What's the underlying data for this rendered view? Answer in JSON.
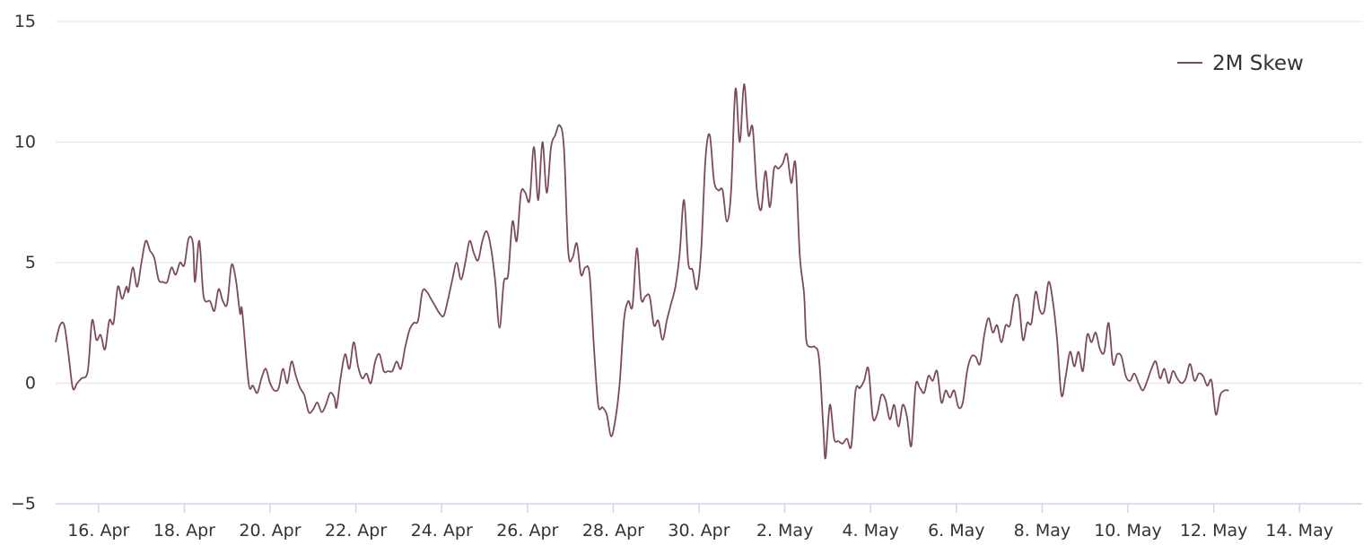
{
  "chart_data": {
    "type": "line",
    "title": "",
    "xlabel": "",
    "ylabel": "",
    "x_range": [
      "15 Apr",
      "15 May"
    ],
    "ylim": [
      -5,
      15
    ],
    "y_ticks": [
      -5,
      0,
      5,
      10,
      15
    ],
    "x_tick_labels": [
      "16. Apr",
      "18. Apr",
      "20. Apr",
      "22. Apr",
      "24. Apr",
      "26. Apr",
      "28. Apr",
      "30. Apr",
      "2. May",
      "4. May",
      "6. May",
      "8. May",
      "10. May",
      "12. May",
      "14. May"
    ],
    "x_tick_days": [
      1,
      3,
      5,
      7,
      9,
      11,
      13,
      15,
      17,
      19,
      21,
      23,
      25,
      27,
      29
    ],
    "grid": true,
    "legend_position": "top-right",
    "series": [
      {
        "name": "2M Skew",
        "color": "#7c4a5e",
        "points": [
          [
            0.0,
            1.7
          ],
          [
            0.1,
            2.4
          ],
          [
            0.2,
            2.4
          ],
          [
            0.3,
            1.2
          ],
          [
            0.4,
            -0.2
          ],
          [
            0.5,
            0.0
          ],
          [
            0.6,
            0.2
          ],
          [
            0.75,
            0.5
          ],
          [
            0.85,
            2.6
          ],
          [
            0.95,
            1.8
          ],
          [
            1.05,
            2.0
          ],
          [
            1.15,
            1.4
          ],
          [
            1.25,
            2.6
          ],
          [
            1.35,
            2.5
          ],
          [
            1.45,
            4.0
          ],
          [
            1.55,
            3.5
          ],
          [
            1.65,
            4.0
          ],
          [
            1.7,
            3.8
          ],
          [
            1.8,
            4.8
          ],
          [
            1.9,
            4.0
          ],
          [
            2.0,
            5.0
          ],
          [
            2.1,
            5.9
          ],
          [
            2.2,
            5.5
          ],
          [
            2.3,
            5.2
          ],
          [
            2.4,
            4.3
          ],
          [
            2.5,
            4.2
          ],
          [
            2.6,
            4.2
          ],
          [
            2.7,
            4.8
          ],
          [
            2.8,
            4.5
          ],
          [
            2.9,
            5.0
          ],
          [
            3.0,
            4.9
          ],
          [
            3.1,
            6.0
          ],
          [
            3.2,
            5.8
          ],
          [
            3.25,
            4.2
          ],
          [
            3.35,
            5.9
          ],
          [
            3.45,
            3.6
          ],
          [
            3.6,
            3.4
          ],
          [
            3.7,
            3.0
          ],
          [
            3.8,
            3.9
          ],
          [
            3.9,
            3.4
          ],
          [
            4.0,
            3.3
          ],
          [
            4.1,
            4.9
          ],
          [
            4.2,
            4.3
          ],
          [
            4.3,
            2.9
          ],
          [
            4.35,
            3.0
          ],
          [
            4.5,
            0.0
          ],
          [
            4.6,
            -0.1
          ],
          [
            4.7,
            -0.4
          ],
          [
            4.8,
            0.2
          ],
          [
            4.9,
            0.6
          ],
          [
            5.0,
            0.0
          ],
          [
            5.1,
            -0.3
          ],
          [
            5.2,
            -0.2
          ],
          [
            5.3,
            0.6
          ],
          [
            5.4,
            0.0
          ],
          [
            5.5,
            0.9
          ],
          [
            5.6,
            0.3
          ],
          [
            5.7,
            -0.2
          ],
          [
            5.8,
            -0.5
          ],
          [
            5.9,
            -1.2
          ],
          [
            6.0,
            -1.1
          ],
          [
            6.1,
            -0.8
          ],
          [
            6.2,
            -1.2
          ],
          [
            6.3,
            -0.9
          ],
          [
            6.4,
            -0.4
          ],
          [
            6.5,
            -0.6
          ],
          [
            6.55,
            -1.0
          ],
          [
            6.65,
            0.3
          ],
          [
            6.75,
            1.2
          ],
          [
            6.85,
            0.6
          ],
          [
            6.95,
            1.7
          ],
          [
            7.05,
            0.7
          ],
          [
            7.15,
            0.2
          ],
          [
            7.25,
            0.4
          ],
          [
            7.35,
            0.0
          ],
          [
            7.45,
            0.9
          ],
          [
            7.55,
            1.2
          ],
          [
            7.65,
            0.5
          ],
          [
            7.75,
            0.5
          ],
          [
            7.85,
            0.5
          ],
          [
            7.95,
            0.9
          ],
          [
            8.05,
            0.6
          ],
          [
            8.15,
            1.5
          ],
          [
            8.25,
            2.2
          ],
          [
            8.35,
            2.5
          ],
          [
            8.45,
            2.6
          ],
          [
            8.55,
            3.8
          ],
          [
            8.65,
            3.8
          ],
          [
            8.75,
            3.5
          ],
          [
            8.85,
            3.2
          ],
          [
            8.95,
            2.9
          ],
          [
            9.05,
            2.8
          ],
          [
            9.15,
            3.5
          ],
          [
            9.25,
            4.3
          ],
          [
            9.35,
            5.0
          ],
          [
            9.45,
            4.3
          ],
          [
            9.55,
            5.0
          ],
          [
            9.65,
            5.9
          ],
          [
            9.75,
            5.4
          ],
          [
            9.85,
            5.1
          ],
          [
            9.95,
            5.9
          ],
          [
            10.05,
            6.3
          ],
          [
            10.15,
            5.6
          ],
          [
            10.25,
            4.2
          ],
          [
            10.35,
            2.3
          ],
          [
            10.45,
            4.2
          ],
          [
            10.55,
            4.5
          ],
          [
            10.65,
            6.7
          ],
          [
            10.75,
            5.9
          ],
          [
            10.85,
            7.9
          ],
          [
            10.95,
            7.9
          ],
          [
            11.05,
            7.6
          ],
          [
            11.15,
            9.8
          ],
          [
            11.25,
            7.6
          ],
          [
            11.35,
            10.0
          ],
          [
            11.45,
            7.9
          ],
          [
            11.55,
            9.8
          ],
          [
            11.65,
            10.3
          ],
          [
            11.75,
            10.7
          ],
          [
            11.85,
            9.8
          ],
          [
            11.95,
            5.5
          ],
          [
            12.05,
            5.2
          ],
          [
            12.15,
            5.8
          ],
          [
            12.25,
            4.5
          ],
          [
            12.35,
            4.8
          ],
          [
            12.45,
            4.5
          ],
          [
            12.55,
            1.5
          ],
          [
            12.65,
            -0.9
          ],
          [
            12.75,
            -1.0
          ],
          [
            12.85,
            -1.3
          ],
          [
            12.95,
            -2.2
          ],
          [
            13.05,
            -1.5
          ],
          [
            13.15,
            0.0
          ],
          [
            13.25,
            2.6
          ],
          [
            13.35,
            3.4
          ],
          [
            13.45,
            3.2
          ],
          [
            13.55,
            5.6
          ],
          [
            13.65,
            3.5
          ],
          [
            13.75,
            3.6
          ],
          [
            13.85,
            3.6
          ],
          [
            13.95,
            2.4
          ],
          [
            14.05,
            2.6
          ],
          [
            14.15,
            1.8
          ],
          [
            14.25,
            2.6
          ],
          [
            14.35,
            3.3
          ],
          [
            14.45,
            4.0
          ],
          [
            14.55,
            5.4
          ],
          [
            14.65,
            7.6
          ],
          [
            14.75,
            5.0
          ],
          [
            14.85,
            4.7
          ],
          [
            14.95,
            3.9
          ],
          [
            15.05,
            5.5
          ],
          [
            15.15,
            9.3
          ],
          [
            15.25,
            10.3
          ],
          [
            15.35,
            8.4
          ],
          [
            15.45,
            8.0
          ],
          [
            15.55,
            8.0
          ],
          [
            15.65,
            6.7
          ],
          [
            15.75,
            8.0
          ],
          [
            15.85,
            12.2
          ],
          [
            15.95,
            10.0
          ],
          [
            16.05,
            12.4
          ],
          [
            16.15,
            10.3
          ],
          [
            16.25,
            10.6
          ],
          [
            16.35,
            8.0
          ],
          [
            16.45,
            7.2
          ],
          [
            16.55,
            8.8
          ],
          [
            16.65,
            7.3
          ],
          [
            16.75,
            8.9
          ],
          [
            16.85,
            8.9
          ],
          [
            16.95,
            9.1
          ],
          [
            17.05,
            9.5
          ],
          [
            17.15,
            8.3
          ],
          [
            17.25,
            9.1
          ],
          [
            17.35,
            5.3
          ],
          [
            17.45,
            3.7
          ],
          [
            17.5,
            1.8
          ],
          [
            17.6,
            1.5
          ],
          [
            17.7,
            1.5
          ],
          [
            17.8,
            1.0
          ],
          [
            17.9,
            -1.9
          ],
          [
            17.95,
            -3.1
          ],
          [
            18.05,
            -0.9
          ],
          [
            18.15,
            -2.3
          ],
          [
            18.25,
            -2.4
          ],
          [
            18.35,
            -2.5
          ],
          [
            18.45,
            -2.3
          ],
          [
            18.55,
            -2.6
          ],
          [
            18.65,
            -0.3
          ],
          [
            18.75,
            -0.2
          ],
          [
            18.85,
            0.1
          ],
          [
            18.95,
            0.6
          ],
          [
            19.05,
            -1.4
          ],
          [
            19.15,
            -1.3
          ],
          [
            19.25,
            -0.5
          ],
          [
            19.35,
            -0.7
          ],
          [
            19.45,
            -1.5
          ],
          [
            19.55,
            -0.9
          ],
          [
            19.65,
            -1.8
          ],
          [
            19.75,
            -0.9
          ],
          [
            19.85,
            -1.4
          ],
          [
            19.95,
            -2.6
          ],
          [
            20.05,
            -0.1
          ],
          [
            20.15,
            -0.2
          ],
          [
            20.25,
            -0.4
          ],
          [
            20.35,
            0.3
          ],
          [
            20.45,
            0.1
          ],
          [
            20.55,
            0.5
          ],
          [
            20.65,
            -0.8
          ],
          [
            20.75,
            -0.3
          ],
          [
            20.85,
            -0.6
          ],
          [
            20.95,
            -0.3
          ],
          [
            21.05,
            -1.0
          ],
          [
            21.15,
            -0.8
          ],
          [
            21.25,
            0.5
          ],
          [
            21.35,
            1.1
          ],
          [
            21.45,
            1.1
          ],
          [
            21.55,
            0.8
          ],
          [
            21.65,
            2.0
          ],
          [
            21.75,
            2.7
          ],
          [
            21.85,
            2.1
          ],
          [
            21.95,
            2.4
          ],
          [
            22.05,
            1.7
          ],
          [
            22.15,
            2.4
          ],
          [
            22.25,
            2.4
          ],
          [
            22.35,
            3.5
          ],
          [
            22.45,
            3.5
          ],
          [
            22.55,
            1.8
          ],
          [
            22.65,
            2.5
          ],
          [
            22.75,
            2.5
          ],
          [
            22.85,
            3.8
          ],
          [
            22.95,
            3.0
          ],
          [
            23.05,
            3.0
          ],
          [
            23.15,
            4.2
          ],
          [
            23.25,
            3.4
          ],
          [
            23.35,
            1.8
          ],
          [
            23.45,
            -0.5
          ],
          [
            23.55,
            0.3
          ],
          [
            23.65,
            1.3
          ],
          [
            23.75,
            0.7
          ],
          [
            23.85,
            1.3
          ],
          [
            23.95,
            0.5
          ],
          [
            24.05,
            2.0
          ],
          [
            24.15,
            1.7
          ],
          [
            24.25,
            2.1
          ],
          [
            24.35,
            1.4
          ],
          [
            24.45,
            1.3
          ],
          [
            24.55,
            2.5
          ],
          [
            24.65,
            0.8
          ],
          [
            24.75,
            1.2
          ],
          [
            24.85,
            1.1
          ],
          [
            24.95,
            0.3
          ],
          [
            25.05,
            0.1
          ],
          [
            25.15,
            0.4
          ],
          [
            25.25,
            0.0
          ],
          [
            25.35,
            -0.3
          ],
          [
            25.45,
            0.1
          ],
          [
            25.55,
            0.6
          ],
          [
            25.65,
            0.9
          ],
          [
            25.75,
            0.2
          ],
          [
            25.85,
            0.6
          ],
          [
            25.95,
            0.0
          ],
          [
            26.05,
            0.5
          ],
          [
            26.15,
            0.2
          ],
          [
            26.25,
            0.0
          ],
          [
            26.35,
            0.2
          ],
          [
            26.45,
            0.8
          ],
          [
            26.55,
            0.1
          ],
          [
            26.65,
            0.4
          ],
          [
            26.75,
            0.3
          ],
          [
            26.85,
            -0.1
          ],
          [
            26.95,
            0.1
          ],
          [
            27.05,
            -1.3
          ],
          [
            27.15,
            -0.5
          ],
          [
            27.25,
            -0.3
          ],
          [
            27.35,
            -0.3
          ]
        ]
      }
    ]
  }
}
